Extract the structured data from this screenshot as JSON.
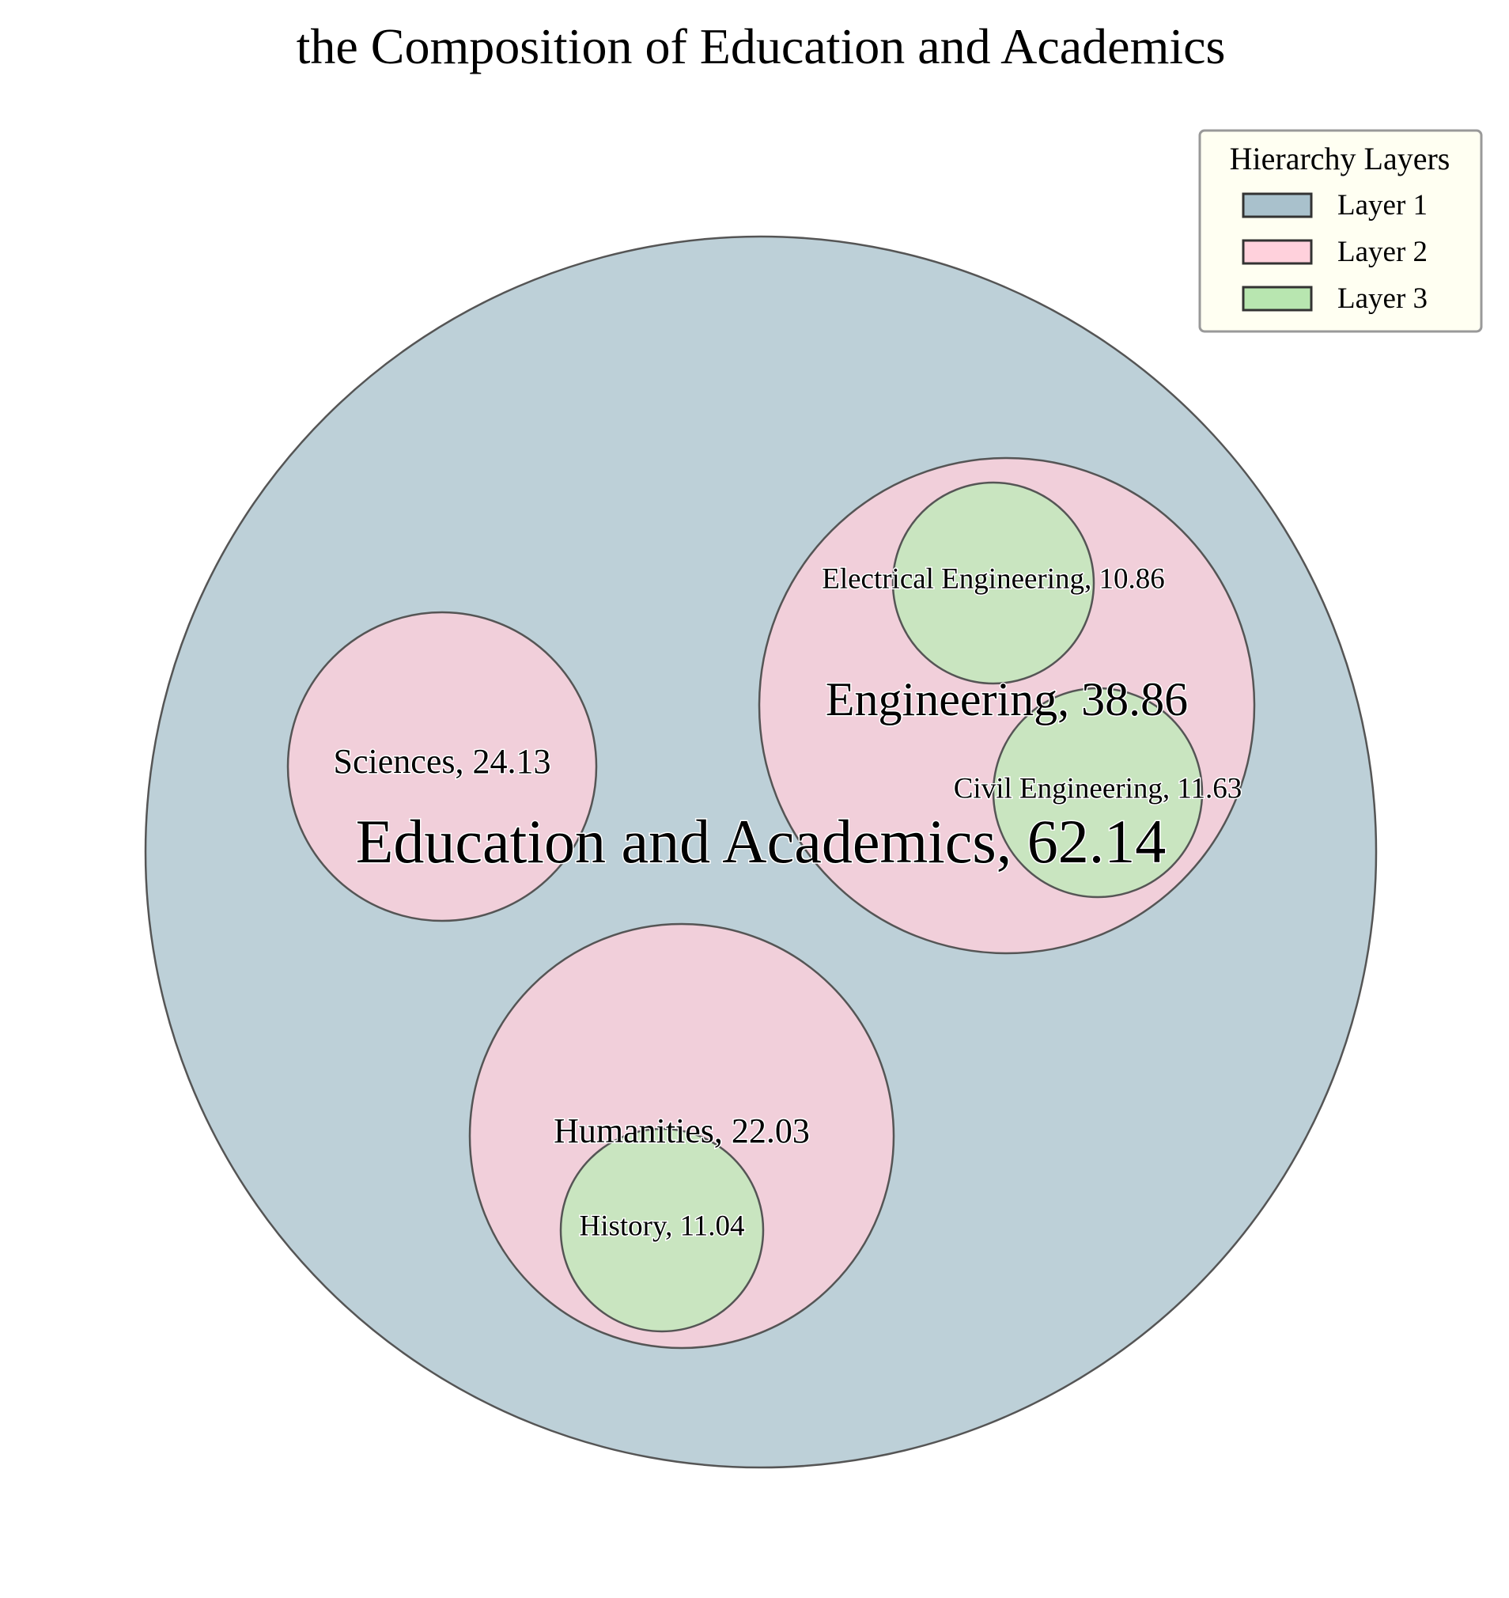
{
  "chart_data": {
    "type": "circle-packing",
    "title": "the Composition of Education and Academics",
    "legend": {
      "title": "Hierarchy Layers",
      "placement": "top-right",
      "entries": [
        {
          "label": "Layer 1",
          "color": "#A9C1CC"
        },
        {
          "label": "Layer 2",
          "color": "#FFD1DC"
        },
        {
          "label": "Layer 3",
          "color": "#B8E6B0"
        }
      ]
    },
    "layer_fill": {
      "1": "#BDD0D8",
      "2": "#F1CFDA",
      "3": "#C9E5C0"
    },
    "nodes": [
      {
        "id": "education",
        "name": "Education and Academics",
        "value": 62.14,
        "layer": 1,
        "label": "Education and Academics, 62.14"
      },
      {
        "id": "engineering",
        "name": "Engineering",
        "value": 38.86,
        "layer": 2,
        "parent": "education",
        "label": "Engineering, 38.86"
      },
      {
        "id": "sciences",
        "name": "Sciences",
        "value": 24.13,
        "layer": 2,
        "parent": "education",
        "label": "Sciences, 24.13"
      },
      {
        "id": "humanities",
        "name": "Humanities",
        "value": 22.03,
        "layer": 2,
        "parent": "education",
        "label": "Humanities, 22.03"
      },
      {
        "id": "electrical",
        "name": "Electrical Engineering",
        "value": 10.86,
        "layer": 3,
        "parent": "engineering",
        "label": "Electrical Engineering, 10.86"
      },
      {
        "id": "civil",
        "name": "Civil Engineering",
        "value": 11.63,
        "layer": 3,
        "parent": "engineering",
        "label": "Civil Engineering, 11.63"
      },
      {
        "id": "history",
        "name": "History",
        "value": 11.04,
        "layer": 3,
        "parent": "humanities",
        "label": "History, 11.04"
      }
    ]
  }
}
